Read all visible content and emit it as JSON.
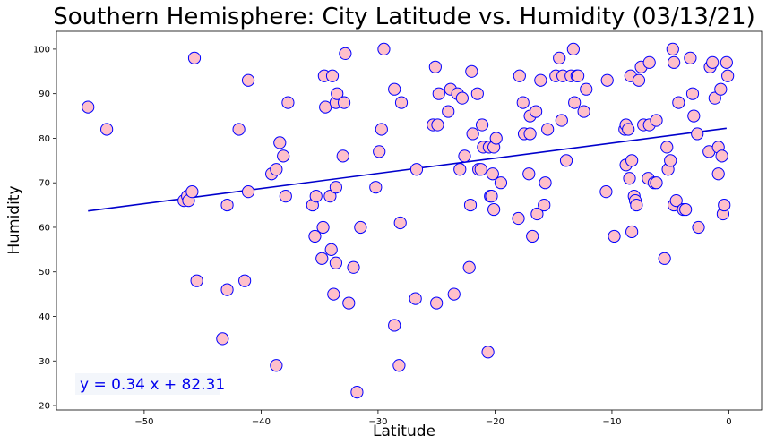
{
  "chart_data": {
    "type": "scatter",
    "title": "Southern Hemisphere: City Latitude vs. Humidity (03/13/21)",
    "xlabel": "Latitude",
    "ylabel": "Humidity",
    "xlim": [
      -57.5,
      2.8
    ],
    "ylim": [
      19,
      104
    ],
    "xticks": [
      -50,
      -40,
      -30,
      -20,
      -10,
      0
    ],
    "yticks": [
      20,
      30,
      40,
      50,
      60,
      70,
      80,
      90,
      100
    ],
    "grid": false,
    "marker_fill": "#ffc0cb",
    "marker_edge": "#0000ff",
    "regression": {
      "slope": 0.34,
      "intercept": 82.31,
      "x_range": [
        -54.8,
        -0.2
      ],
      "equation": "y = 0.34 x + 82.31",
      "color": "#0000cc"
    },
    "points": [
      [
        -54.8,
        87
      ],
      [
        -53.2,
        82
      ],
      [
        -46.6,
        66
      ],
      [
        -46.3,
        67
      ],
      [
        -46.2,
        66
      ],
      [
        -45.9,
        68
      ],
      [
        -45.7,
        98
      ],
      [
        -45.5,
        48
      ],
      [
        -43.3,
        35
      ],
      [
        -42.9,
        65
      ],
      [
        -42.9,
        46
      ],
      [
        -41.9,
        82
      ],
      [
        -41.4,
        48
      ],
      [
        -41.1,
        68
      ],
      [
        -41.1,
        93
      ],
      [
        -39.1,
        72
      ],
      [
        -38.7,
        29
      ],
      [
        -38.7,
        73
      ],
      [
        -38.4,
        79
      ],
      [
        -38.1,
        76
      ],
      [
        -37.9,
        67
      ],
      [
        -37.7,
        88
      ],
      [
        -35.6,
        65
      ],
      [
        -35.4,
        58
      ],
      [
        -35.3,
        67
      ],
      [
        -34.8,
        53
      ],
      [
        -34.7,
        60
      ],
      [
        -34.6,
        94
      ],
      [
        -34.5,
        87
      ],
      [
        -34.1,
        67
      ],
      [
        -34.0,
        55
      ],
      [
        -33.9,
        94
      ],
      [
        -33.8,
        45
      ],
      [
        -33.6,
        52
      ],
      [
        -33.6,
        69
      ],
      [
        -33.6,
        88
      ],
      [
        -33.5,
        90
      ],
      [
        -33.0,
        76
      ],
      [
        -32.9,
        88
      ],
      [
        -32.8,
        99
      ],
      [
        -32.5,
        43
      ],
      [
        -32.1,
        51
      ],
      [
        -31.8,
        23
      ],
      [
        -31.5,
        60
      ],
      [
        -30.2,
        69
      ],
      [
        -29.9,
        77
      ],
      [
        -29.7,
        82
      ],
      [
        -29.5,
        100
      ],
      [
        -28.6,
        38
      ],
      [
        -28.6,
        91
      ],
      [
        -28.2,
        29
      ],
      [
        -28.1,
        61
      ],
      [
        -28.0,
        88
      ],
      [
        -26.7,
        73
      ],
      [
        -26.8,
        44
      ],
      [
        -25.3,
        83
      ],
      [
        -25.1,
        96
      ],
      [
        -25.0,
        43
      ],
      [
        -24.9,
        83
      ],
      [
        -24.8,
        90
      ],
      [
        -24.0,
        86
      ],
      [
        -23.8,
        91
      ],
      [
        -23.5,
        45
      ],
      [
        -23.2,
        90
      ],
      [
        -23.0,
        73
      ],
      [
        -22.8,
        89
      ],
      [
        -22.6,
        76
      ],
      [
        -22.2,
        51
      ],
      [
        -22.1,
        65
      ],
      [
        -22.0,
        95
      ],
      [
        -21.9,
        81
      ],
      [
        -21.5,
        90
      ],
      [
        -21.4,
        73
      ],
      [
        -21.2,
        73
      ],
      [
        -21.1,
        83
      ],
      [
        -21.0,
        78
      ],
      [
        -20.6,
        32
      ],
      [
        -20.5,
        78
      ],
      [
        -20.4,
        67
      ],
      [
        -20.3,
        67
      ],
      [
        -20.2,
        72
      ],
      [
        -20.1,
        78
      ],
      [
        -20.1,
        64
      ],
      [
        -19.9,
        80
      ],
      [
        -19.5,
        70
      ],
      [
        -18.0,
        62
      ],
      [
        -17.9,
        94
      ],
      [
        -17.6,
        88
      ],
      [
        -17.5,
        81
      ],
      [
        -17.1,
        72
      ],
      [
        -17.0,
        81
      ],
      [
        -17.0,
        85
      ],
      [
        -16.8,
        58
      ],
      [
        -16.5,
        86
      ],
      [
        -16.4,
        63
      ],
      [
        -16.1,
        93
      ],
      [
        -15.8,
        65
      ],
      [
        -15.7,
        70
      ],
      [
        -15.5,
        82
      ],
      [
        -14.8,
        94
      ],
      [
        -14.5,
        98
      ],
      [
        -14.3,
        84
      ],
      [
        -14.2,
        94
      ],
      [
        -13.9,
        75
      ],
      [
        -13.5,
        94
      ],
      [
        -13.3,
        100
      ],
      [
        -13.2,
        88
      ],
      [
        -13.0,
        94
      ],
      [
        -12.9,
        94
      ],
      [
        -12.4,
        86
      ],
      [
        -12.2,
        91
      ],
      [
        -10.5,
        68
      ],
      [
        -10.4,
        93
      ],
      [
        -9.8,
        58
      ],
      [
        -8.9,
        82
      ],
      [
        -8.8,
        83
      ],
      [
        -8.8,
        74
      ],
      [
        -8.6,
        82
      ],
      [
        -8.5,
        71
      ],
      [
        -8.4,
        94
      ],
      [
        -8.3,
        59
      ],
      [
        -8.3,
        75
      ],
      [
        -8.1,
        67
      ],
      [
        -8.0,
        66
      ],
      [
        -7.9,
        65
      ],
      [
        -7.7,
        93
      ],
      [
        -7.5,
        96
      ],
      [
        -7.3,
        83
      ],
      [
        -6.9,
        71
      ],
      [
        -6.8,
        97
      ],
      [
        -6.8,
        83
      ],
      [
        -6.4,
        70
      ],
      [
        -6.2,
        84
      ],
      [
        -6.2,
        70
      ],
      [
        -5.5,
        53
      ],
      [
        -5.3,
        78
      ],
      [
        -5.2,
        73
      ],
      [
        -5.0,
        75
      ],
      [
        -4.8,
        100
      ],
      [
        -4.7,
        65
      ],
      [
        -4.7,
        97
      ],
      [
        -4.5,
        66
      ],
      [
        -4.3,
        88
      ],
      [
        -3.9,
        64
      ],
      [
        -3.7,
        64
      ],
      [
        -3.3,
        98
      ],
      [
        -3.1,
        90
      ],
      [
        -3.0,
        85
      ],
      [
        -2.7,
        81
      ],
      [
        -2.6,
        60
      ],
      [
        -1.7,
        77
      ],
      [
        -1.6,
        96
      ],
      [
        -1.4,
        97
      ],
      [
        -1.2,
        89
      ],
      [
        -0.9,
        78
      ],
      [
        -0.9,
        72
      ],
      [
        -0.7,
        91
      ],
      [
        -0.6,
        76
      ],
      [
        -0.5,
        63
      ],
      [
        -0.4,
        65
      ],
      [
        -0.2,
        97
      ],
      [
        -0.1,
        94
      ]
    ]
  }
}
